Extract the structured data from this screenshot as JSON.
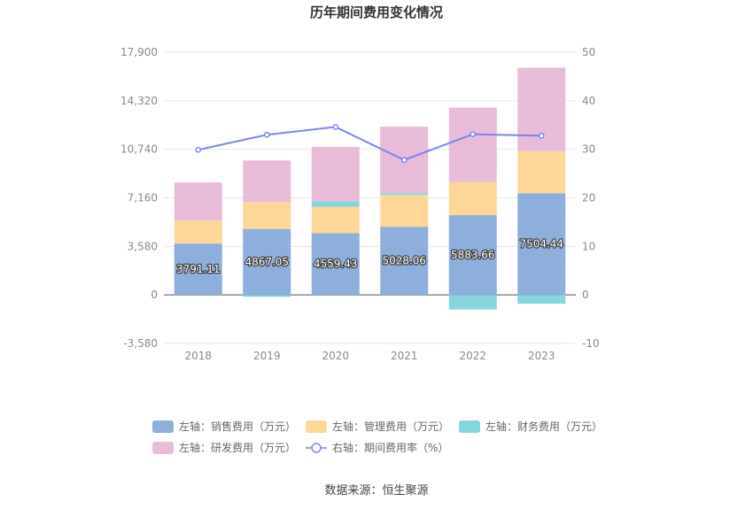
{
  "chart_data": {
    "type": "bar",
    "title": "历年期间费用变化情况",
    "categories": [
      "2018",
      "2019",
      "2020",
      "2021",
      "2022",
      "2023"
    ],
    "left_axis": {
      "ticks": [
        "-3,580",
        "0",
        "3,580",
        "7,160",
        "10,740",
        "14,320",
        "17,900"
      ],
      "tick_values": [
        -3580,
        0,
        3580,
        7160,
        10740,
        14320,
        17900
      ],
      "range": [
        -3580,
        17900
      ]
    },
    "right_axis": {
      "ticks": [
        "-10",
        "0",
        "10",
        "20",
        "30",
        "40",
        "50"
      ],
      "tick_values": [
        -10,
        0,
        10,
        20,
        30,
        40,
        50
      ],
      "range": [
        -10,
        50
      ]
    },
    "series": [
      {
        "name": "左轴：销售费用（万元）",
        "axis": "left",
        "stack": true,
        "color": "#8eaedb",
        "values": [
          3791.11,
          4867.05,
          4559.43,
          5028.06,
          5883.66,
          7504.44
        ],
        "labels": [
          "3791.11",
          "4867.05",
          "4559.43",
          "5028.06",
          "5883.66",
          "7504.44"
        ]
      },
      {
        "name": "左轴：管理费用（万元）",
        "axis": "left",
        "stack": true,
        "color": "#fdd79a",
        "values": [
          1700,
          2000,
          1950,
          2350,
          2450,
          3100
        ]
      },
      {
        "name": "左轴：财务费用（万元）",
        "axis": "left",
        "stack": true,
        "color": "#87d5dc",
        "values": [
          0,
          -140,
          400,
          130,
          -1080,
          -650
        ]
      },
      {
        "name": "左轴：研发费用（万元）",
        "axis": "left",
        "stack": true,
        "color": "#e8bbd9",
        "values": [
          2800,
          3050,
          4000,
          4900,
          5480,
          6150
        ]
      },
      {
        "name": "右轴：期间费用率（%）",
        "axis": "right",
        "type": "line",
        "color": "#7b84f0",
        "values": [
          29.9,
          33.0,
          34.6,
          27.8,
          33.1,
          32.8
        ]
      }
    ],
    "legend": {
      "position": "bottom"
    },
    "grid": true
  },
  "footer": {
    "source": "数据来源：恒生聚源"
  }
}
